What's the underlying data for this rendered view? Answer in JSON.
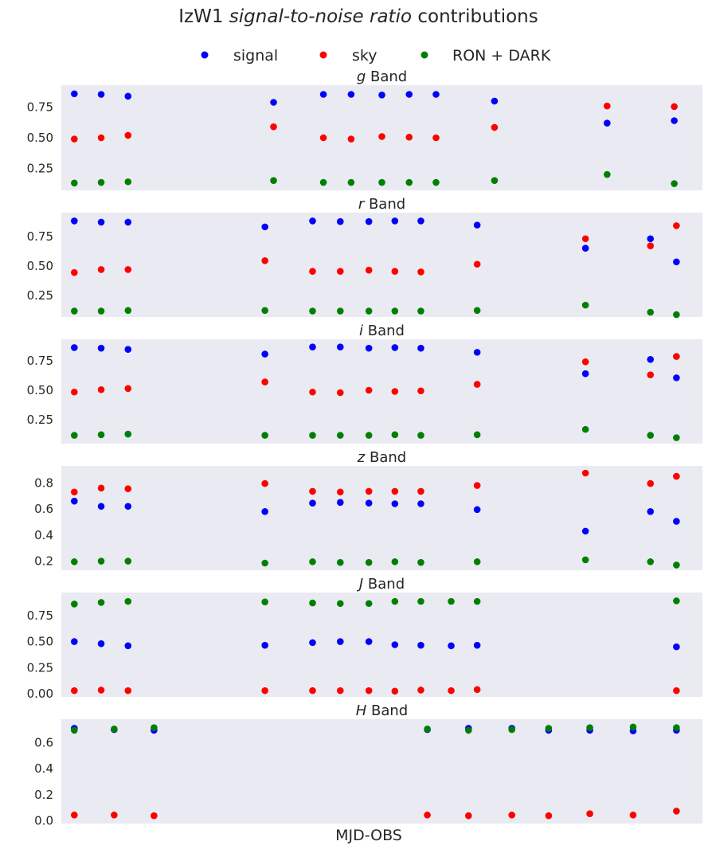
{
  "figure": {
    "title_pre": "IzW1 ",
    "title_italic": "signal-to-noise ratio",
    "title_post": " contributions",
    "xlabel": "MJD-OBS",
    "background": "#eaeaf2",
    "colors": {
      "signal": "#0000ff",
      "sky": "#ff0000",
      "ron": "#008000"
    }
  },
  "legend": {
    "placement": "top-center",
    "items": [
      {
        "label": "signal",
        "color": "#0000ff"
      },
      {
        "label": "sky",
        "color": "#ff0000"
      },
      {
        "label": "RON + DARK",
        "color": "#008000"
      }
    ]
  },
  "chart_data": [
    {
      "type": "scatter",
      "band": "g",
      "title_suffix": " Band",
      "ylim": [
        0.07,
        0.93
      ],
      "yticks": [
        "0.25",
        "0.50",
        "0.75"
      ],
      "ytick_values": [
        0.25,
        0.5,
        0.75
      ],
      "x": [
        0.0,
        0.62,
        1.24,
        4.6,
        5.75,
        6.39,
        7.1,
        7.73,
        8.35,
        9.7,
        12.3,
        13.85
      ],
      "series": [
        {
          "name": "signal",
          "values": [
            0.86,
            0.855,
            0.84,
            0.79,
            0.855,
            0.855,
            0.85,
            0.855,
            0.855,
            0.8,
            0.62,
            0.64
          ]
        },
        {
          "name": "sky",
          "values": [
            0.49,
            0.5,
            0.52,
            0.59,
            0.5,
            0.49,
            0.51,
            0.505,
            0.5,
            0.585,
            0.76,
            0.755
          ]
        },
        {
          "name": "RON + DARK",
          "values": [
            0.13,
            0.135,
            0.14,
            0.15,
            0.135,
            0.135,
            0.135,
            0.135,
            0.135,
            0.15,
            0.2,
            0.125
          ]
        }
      ]
    },
    {
      "type": "scatter",
      "band": "r",
      "title_suffix": " Band",
      "ylim": [
        0.07,
        0.95
      ],
      "yticks": [
        "0.25",
        "0.50",
        "0.75"
      ],
      "ytick_values": [
        0.25,
        0.5,
        0.75
      ],
      "x": [
        0.0,
        0.62,
        1.24,
        4.4,
        5.5,
        6.14,
        6.8,
        7.4,
        8.0,
        9.3,
        11.8,
        13.3,
        13.9
      ],
      "series": [
        {
          "name": "signal",
          "values": [
            0.88,
            0.87,
            0.87,
            0.83,
            0.88,
            0.875,
            0.875,
            0.88,
            0.88,
            0.845,
            0.65,
            0.73,
            0.535
          ]
        },
        {
          "name": "sky",
          "values": [
            0.445,
            0.47,
            0.47,
            0.545,
            0.455,
            0.455,
            0.465,
            0.455,
            0.45,
            0.515,
            0.73,
            0.67,
            0.84
          ]
        },
        {
          "name": "RON + DARK",
          "values": [
            0.12,
            0.12,
            0.125,
            0.125,
            0.12,
            0.12,
            0.12,
            0.12,
            0.12,
            0.125,
            0.17,
            0.11,
            0.09
          ]
        }
      ]
    },
    {
      "type": "scatter",
      "band": "i",
      "title_suffix": " Band",
      "ylim": [
        0.05,
        0.93
      ],
      "yticks": [
        "0.25",
        "0.50",
        "0.75"
      ],
      "ytick_values": [
        0.25,
        0.5,
        0.75
      ],
      "x": [
        0.0,
        0.62,
        1.24,
        4.4,
        5.5,
        6.14,
        6.8,
        7.4,
        8.0,
        9.3,
        11.8,
        13.3,
        13.9
      ],
      "series": [
        {
          "name": "signal",
          "values": [
            0.86,
            0.855,
            0.845,
            0.805,
            0.865,
            0.865,
            0.855,
            0.86,
            0.855,
            0.82,
            0.64,
            0.76,
            0.605
          ]
        },
        {
          "name": "sky",
          "values": [
            0.485,
            0.505,
            0.515,
            0.57,
            0.485,
            0.48,
            0.5,
            0.49,
            0.495,
            0.55,
            0.74,
            0.63,
            0.785
          ]
        },
        {
          "name": "RON + DARK",
          "values": [
            0.12,
            0.125,
            0.13,
            0.12,
            0.12,
            0.12,
            0.12,
            0.125,
            0.12,
            0.125,
            0.17,
            0.12,
            0.1
          ]
        }
      ]
    },
    {
      "type": "scatter",
      "band": "z",
      "title_suffix": " Band",
      "ylim": [
        0.13,
        0.93
      ],
      "yticks": [
        "0.2",
        "0.4",
        "0.6",
        "0.8"
      ],
      "ytick_values": [
        0.2,
        0.4,
        0.6,
        0.8
      ],
      "x": [
        0.0,
        0.62,
        1.24,
        4.4,
        5.5,
        6.14,
        6.8,
        7.4,
        8.0,
        9.3,
        11.8,
        13.3,
        13.9
      ],
      "series": [
        {
          "name": "signal",
          "values": [
            0.66,
            0.62,
            0.62,
            0.58,
            0.645,
            0.65,
            0.645,
            0.64,
            0.64,
            0.595,
            0.43,
            0.58,
            0.505
          ]
        },
        {
          "name": "sky",
          "values": [
            0.73,
            0.76,
            0.755,
            0.795,
            0.735,
            0.73,
            0.735,
            0.735,
            0.735,
            0.78,
            0.875,
            0.795,
            0.85
          ]
        },
        {
          "name": "RON + DARK",
          "values": [
            0.195,
            0.2,
            0.2,
            0.185,
            0.195,
            0.19,
            0.19,
            0.195,
            0.19,
            0.195,
            0.21,
            0.195,
            0.17
          ]
        }
      ]
    },
    {
      "type": "scatter",
      "band": "J",
      "title_suffix": " Band",
      "ylim": [
        -0.03,
        0.97
      ],
      "yticks": [
        "0.00",
        "0.25",
        "0.50",
        "0.75"
      ],
      "ytick_values": [
        0.0,
        0.25,
        0.5,
        0.75
      ],
      "x": [
        0.0,
        0.62,
        1.24,
        4.4,
        5.5,
        6.14,
        6.8,
        7.4,
        8.0,
        8.7,
        9.3,
        13.9
      ],
      "series": [
        {
          "name": "signal",
          "values": [
            0.5,
            0.48,
            0.46,
            0.465,
            0.49,
            0.5,
            0.5,
            0.47,
            0.465,
            0.46,
            0.465,
            0.45
          ]
        },
        {
          "name": "sky",
          "values": [
            0.03,
            0.035,
            0.03,
            0.03,
            0.03,
            0.03,
            0.03,
            0.025,
            0.035,
            0.03,
            0.04,
            0.03
          ]
        },
        {
          "name": "RON + DARK",
          "values": [
            0.86,
            0.875,
            0.885,
            0.88,
            0.87,
            0.865,
            0.865,
            0.885,
            0.885,
            0.885,
            0.885,
            0.89
          ]
        }
      ]
    },
    {
      "type": "scatter",
      "band": "H",
      "title_suffix": " Band",
      "ylim": [
        -0.02,
        0.78
      ],
      "yticks": [
        "0.0",
        "0.2",
        "0.4",
        "0.6"
      ],
      "ytick_values": [
        0.0,
        0.2,
        0.4,
        0.6
      ],
      "x": [
        0.0,
        0.92,
        1.84,
        8.15,
        9.1,
        10.1,
        10.95,
        11.9,
        12.9,
        13.9
      ],
      "series": [
        {
          "name": "signal",
          "values": [
            0.71,
            0.7,
            0.695,
            0.7,
            0.71,
            0.71,
            0.695,
            0.695,
            0.69,
            0.695
          ]
        },
        {
          "name": "sky",
          "values": [
            0.045,
            0.045,
            0.04,
            0.045,
            0.04,
            0.045,
            0.04,
            0.055,
            0.045,
            0.075
          ]
        },
        {
          "name": "RON + DARK",
          "values": [
            0.695,
            0.705,
            0.715,
            0.705,
            0.695,
            0.7,
            0.71,
            0.715,
            0.72,
            0.715
          ]
        }
      ]
    }
  ]
}
